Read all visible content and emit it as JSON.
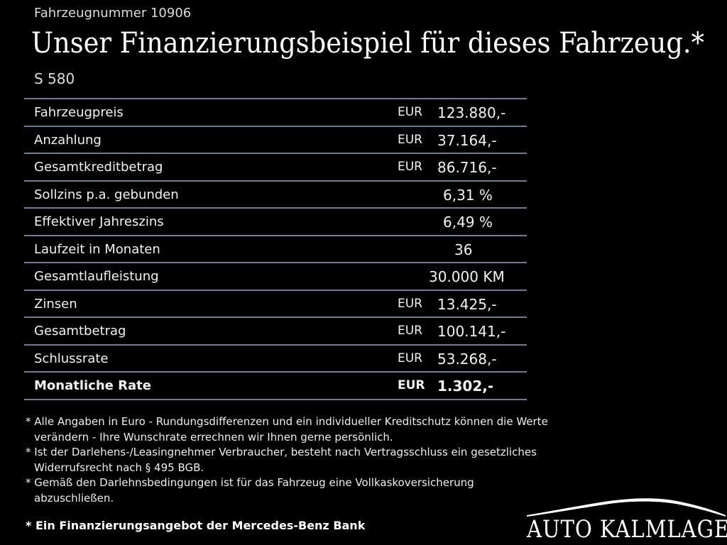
{
  "header": {
    "vehicle_number": "Fahrzeugnummer 10906",
    "headline": "Unser Finanzierungsbeispiel für dieses Fahrzeug.*",
    "model": "S 580"
  },
  "finance_table": [
    {
      "label": "Fahrzeugpreis",
      "currency": "EUR",
      "value": "123.880,-"
    },
    {
      "label": "Anzahlung",
      "currency": "EUR",
      "value": "37.164,-"
    },
    {
      "label": "Gesamtkreditbetrag",
      "currency": "EUR",
      "value": "86.716,-"
    },
    {
      "label": "Sollzins p.a. gebunden",
      "currency": "",
      "value": "6,31 %"
    },
    {
      "label": "Effektiver Jahreszins",
      "currency": "",
      "value": "6,49 %"
    },
    {
      "label": "Laufzeit in Monaten",
      "currency": "",
      "value": "36"
    },
    {
      "label": "Gesamtlaufleistung",
      "currency": "",
      "value": "30.000 KM"
    },
    {
      "label": "Zinsen",
      "currency": "EUR",
      "value": "13.425,-"
    },
    {
      "label": "Gesamtbetrag",
      "currency": "EUR",
      "value": "100.141,-"
    },
    {
      "label": "Schlussrate",
      "currency": "EUR",
      "value": "53.268,-"
    },
    {
      "label": "Monatliche Rate",
      "currency": "EUR",
      "value": "1.302,-"
    }
  ],
  "notes": [
    "* Alle Angaben in Euro - Rundungsdifferenzen und ein individueller Kreditschutz können die Werte verändern - Ihre Wunschrate errechnen wir Ihnen gerne persönlich.",
    "* Ist der Darlehens-/Leasingnehmer Verbraucher, besteht nach Vertragsschluss ein gesetzliches Widerrufsrecht nach § 495 BGB.",
    "* Gemäß den Darlehnsbedingungen ist für das Fahrzeug eine Vollkaskoversicherung abzuschließen."
  ],
  "offer_note": "* Ein Finanzierungsangebot der Mercedes-Benz Bank",
  "logo": {
    "text": "AUTO KALMLAGE",
    "icon": "car-silhouette-icon"
  }
}
